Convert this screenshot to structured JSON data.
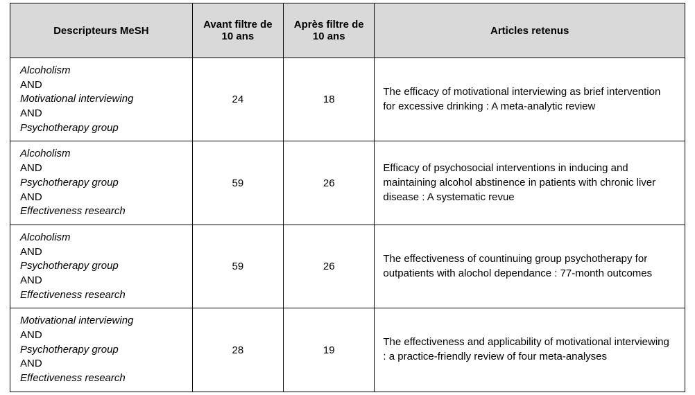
{
  "styles": {
    "header_bg": "#d9d9d9",
    "border_color": "#000000",
    "font_family": "Verdana, Geneva, Tahoma, sans-serif",
    "font_size_header": 15,
    "font_size_cell": 15,
    "text_color": "#000000",
    "page_bg": "#ffffff",
    "col_widths_pct": [
      27,
      13.5,
      13.5,
      46
    ]
  },
  "headers": {
    "c0": "Descripteurs MeSH",
    "c1": "Avant filtre de 10 ans",
    "c2": "Après filtre de 10 ans",
    "c3": "Articles retenus"
  },
  "rows": [
    {
      "desc": {
        "t1": "Alcoholism",
        "op1": "AND",
        "t2": "Motivational interviewing",
        "op2": "AND",
        "t3": "Psychotherapy group"
      },
      "before": "24",
      "after": "18",
      "article": "The efficacy of motivational interviewing as brief intervention for excessive drinking : A meta-analytic review"
    },
    {
      "desc": {
        "t1": "Alcoholism",
        "op1": "AND",
        "t2": "Psychotherapy group",
        "op2": "AND",
        "t3": "Effectiveness research"
      },
      "before": "59",
      "after": "26",
      "article": "Efficacy of psychosocial interventions in inducing and maintaining alcohol abstinence in patients with chronic liver disease : A systematic revue"
    },
    {
      "desc": {
        "t1": "Alcoholism",
        "op1": "AND",
        "t2": "Psychotherapy group",
        "op2": "AND",
        "t3": "Effectiveness research"
      },
      "before": "59",
      "after": "26",
      "article": "The effectiveness of countinuing group psychotherapy for outpatients with alochol dependance : 77-month outcomes"
    },
    {
      "desc": {
        "t1": "Motivational interviewing",
        "op1": "AND",
        "t2": "Psychotherapy group",
        "op2": "AND",
        "t3": "Effectiveness research"
      },
      "before": "28",
      "after": "19",
      "article": "The effectiveness and applicability of motivational interviewing : a practice-friendly review of four meta-analyses"
    }
  ]
}
